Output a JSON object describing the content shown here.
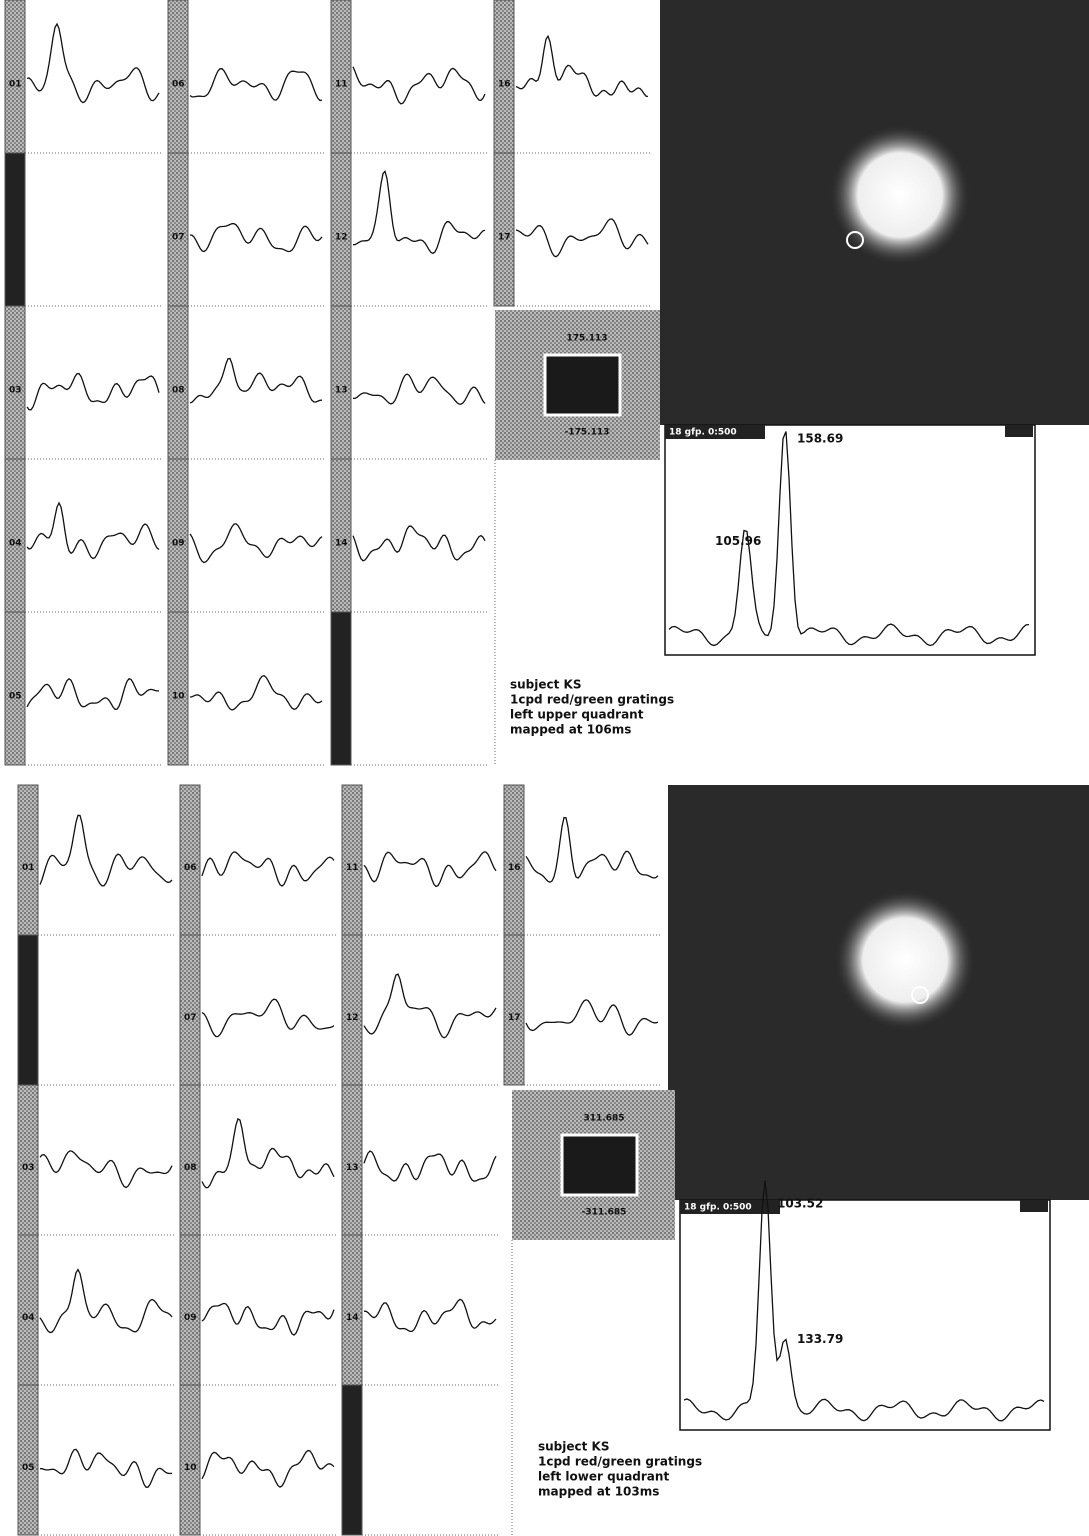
{
  "panels": [
    {
      "channels": [
        [
          "01",
          null,
          "03",
          "04",
          "05"
        ],
        [
          "06",
          "07",
          "08",
          "09",
          "10"
        ],
        [
          "11",
          "12",
          "13",
          "14",
          null
        ],
        [
          "16",
          "17"
        ]
      ],
      "scale": {
        "max": "175.113",
        "min": "-175.113"
      },
      "gfp": {
        "title": "18  gfp. 0:500",
        "peaks": [
          "158.69",
          "105.96"
        ]
      },
      "notes": [
        "subject KS",
        "1cpd red/green gratings",
        "left upper quadrant",
        "mapped at 106ms"
      ]
    },
    {
      "channels": [
        [
          "01",
          null,
          "03",
          "04",
          "05"
        ],
        [
          "06",
          "07",
          "08",
          "09",
          "10"
        ],
        [
          "11",
          "12",
          "13",
          "14",
          null
        ],
        [
          "16",
          "17"
        ]
      ],
      "scale": {
        "max": "311.685",
        "min": "-311.685"
      },
      "gfp": {
        "title": "18  gfp. 0:500",
        "peaks": [
          "103.52",
          "133.79"
        ]
      },
      "notes": [
        "subject KS",
        "1cpd red/green gratings",
        "left lower quadrant",
        "mapped at 103ms"
      ]
    }
  ]
}
